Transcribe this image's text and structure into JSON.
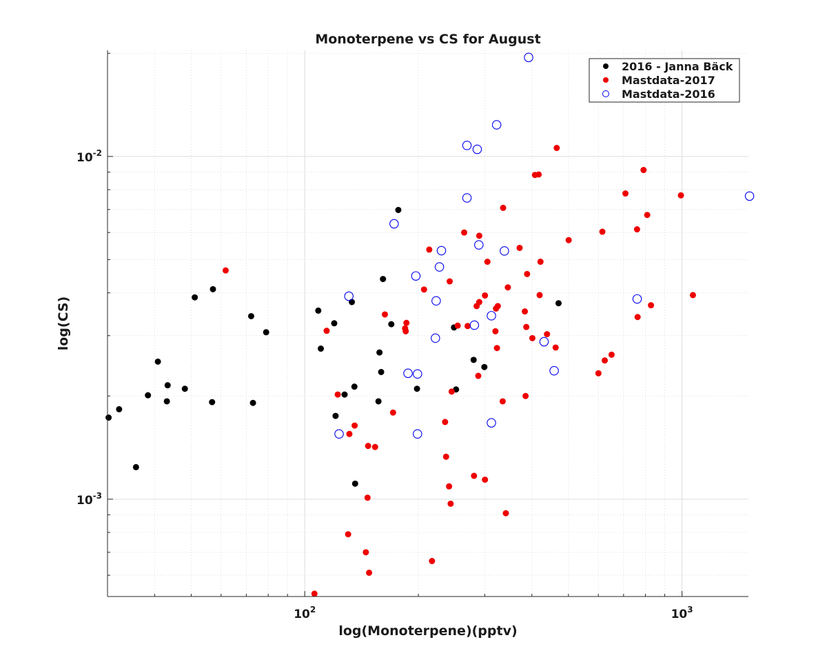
{
  "chart_data": {
    "type": "scatter",
    "title": "Monoterpene vs CS for August",
    "xlabel": "log(Monoterpene)(pptv)",
    "ylabel": "log(CS)",
    "xscale": "log",
    "yscale": "log",
    "xlim": [
      30,
      1500
    ],
    "ylim": [
      0.00052,
      0.0204
    ],
    "grid": true,
    "legend_position": "top-right",
    "x_ticks": [
      {
        "value": 100,
        "base": "10",
        "exp": "2"
      },
      {
        "value": 1000,
        "base": "10",
        "exp": "3"
      }
    ],
    "y_ticks": [
      {
        "value": 0.001,
        "base": "10",
        "exp": "-3"
      },
      {
        "value": 0.01,
        "base": "10",
        "exp": "-2"
      }
    ],
    "series": [
      {
        "name": "2016 - Janna Bäck",
        "color": "#000000",
        "marker": "filled-dot",
        "points": [
          [
            30.2,
            0.00173
          ],
          [
            32.2,
            0.00183
          ],
          [
            35.7,
            0.00124
          ],
          [
            38.4,
            0.00201
          ],
          [
            40.8,
            0.00252
          ],
          [
            43.1,
            0.00193
          ],
          [
            43.3,
            0.00215
          ],
          [
            48.1,
            0.0021
          ],
          [
            51.1,
            0.00388
          ],
          [
            56.8,
            0.00192
          ],
          [
            57.1,
            0.0041
          ],
          [
            72.1,
            0.00342
          ],
          [
            72.9,
            0.00191
          ],
          [
            79.0,
            0.00307
          ],
          [
            108.6,
            0.00355
          ],
          [
            110.3,
            0.00275
          ],
          [
            119.7,
            0.00326
          ],
          [
            120.7,
            0.00175
          ],
          [
            127.5,
            0.00202
          ],
          [
            133.3,
            0.00376
          ],
          [
            135.4,
            0.00213
          ],
          [
            136.0,
            0.00111
          ],
          [
            156.8,
            0.00193
          ],
          [
            157.8,
            0.00268
          ],
          [
            159.4,
            0.00235
          ],
          [
            161.2,
            0.00439
          ],
          [
            169.6,
            0.00324
          ],
          [
            177.0,
            0.00698
          ],
          [
            198.4,
            0.0021
          ],
          [
            248.7,
            0.00317
          ],
          [
            251.8,
            0.00209
          ],
          [
            280.3,
            0.00255
          ],
          [
            299.3,
            0.00243
          ],
          [
            470.7,
            0.00373
          ]
        ]
      },
      {
        "name": "Mastdata-2017",
        "color": "#ee0000",
        "marker": "filled-dot",
        "points": [
          [
            61.7,
            0.00465
          ],
          [
            106.1,
            0.00053
          ],
          [
            114.3,
            0.0031
          ],
          [
            122.3,
            0.00202
          ],
          [
            130.3,
            0.00079
          ],
          [
            131.3,
            0.00155
          ],
          [
            135.6,
            0.00164
          ],
          [
            145.2,
            0.0007
          ],
          [
            146.7,
            0.00101
          ],
          [
            147.2,
            0.00143
          ],
          [
            148.1,
            0.00061
          ],
          [
            153.6,
            0.00142
          ],
          [
            163.1,
            0.00346
          ],
          [
            171.4,
            0.00179
          ],
          [
            184.5,
            0.00315
          ],
          [
            185.2,
            0.00309
          ],
          [
            186.0,
            0.00327
          ],
          [
            207.1,
            0.00409
          ],
          [
            213.8,
            0.00535
          ],
          [
            217.4,
            0.00066
          ],
          [
            235.5,
            0.00168
          ],
          [
            236.9,
            0.00133
          ],
          [
            241.3,
            0.00109
          ],
          [
            242.2,
            0.00432
          ],
          [
            243.6,
            0.00097
          ],
          [
            245.1,
            0.00206
          ],
          [
            254.3,
            0.00321
          ],
          [
            264.6,
            0.006
          ],
          [
            270.2,
            0.0032
          ],
          [
            281.0,
            0.00117
          ],
          [
            285.5,
            0.00366
          ],
          [
            288.4,
            0.00229
          ],
          [
            290.1,
            0.00376
          ],
          [
            290.1,
            0.00587
          ],
          [
            300.4,
            0.00114
          ],
          [
            300.4,
            0.00393
          ],
          [
            304.9,
            0.00493
          ],
          [
            320.2,
            0.00309
          ],
          [
            321.3,
            0.0036
          ],
          [
            323.2,
            0.00276
          ],
          [
            324.9,
            0.00366
          ],
          [
            334.7,
            0.00193
          ],
          [
            335.6,
            0.00708
          ],
          [
            341.2,
            0.00091
          ],
          [
            345.4,
            0.00415
          ],
          [
            371.1,
            0.00541
          ],
          [
            383.2,
            0.00353
          ],
          [
            384.9,
            0.002
          ],
          [
            386.6,
            0.00318
          ],
          [
            388.5,
            0.00454
          ],
          [
            401.2,
            0.00295
          ],
          [
            407.6,
            0.00883
          ],
          [
            416.9,
            0.00886
          ],
          [
            419.4,
            0.00394
          ],
          [
            421.5,
            0.00493
          ],
          [
            438.7,
            0.00303
          ],
          [
            462.4,
            0.00277
          ],
          [
            465.5,
            0.01059
          ],
          [
            500.7,
            0.0057
          ],
          [
            600.4,
            0.00233
          ],
          [
            615.0,
            0.00603
          ],
          [
            624.1,
            0.00254
          ],
          [
            650.6,
            0.00264
          ],
          [
            708.0,
            0.0078
          ],
          [
            760.0,
            0.00613
          ],
          [
            762.6,
            0.0034
          ],
          [
            790.9,
            0.00913
          ],
          [
            808.6,
            0.00675
          ],
          [
            827.5,
            0.00368
          ],
          [
            993.4,
            0.0077
          ],
          [
            1068.9,
            0.00394
          ]
        ]
      },
      {
        "name": "Mastdata-2016",
        "color": "#0000ee",
        "marker": "open-circle",
        "points": [
          [
            123.3,
            0.00155
          ],
          [
            130.9,
            0.00391
          ],
          [
            172.5,
            0.00636
          ],
          [
            187.8,
            0.00233
          ],
          [
            197.0,
            0.00448
          ],
          [
            199.0,
            0.00232
          ],
          [
            199.0,
            0.00155
          ],
          [
            222.0,
            0.00295
          ],
          [
            223.0,
            0.00379
          ],
          [
            227.5,
            0.00476
          ],
          [
            230.3,
            0.00531
          ],
          [
            269.1,
            0.01077
          ],
          [
            269.1,
            0.00757
          ],
          [
            281.6,
            0.00322
          ],
          [
            286.5,
            0.01049
          ],
          [
            289.4,
            0.00552
          ],
          [
            312.4,
            0.00167
          ],
          [
            312.4,
            0.00343
          ],
          [
            322.6,
            0.01237
          ],
          [
            338.2,
            0.0053
          ],
          [
            392.1,
            0.01945
          ],
          [
            430.9,
            0.00288
          ],
          [
            458.2,
            0.00237
          ],
          [
            760.6,
            0.00384
          ],
          [
            1510.0,
            0.00766
          ]
        ]
      }
    ]
  }
}
